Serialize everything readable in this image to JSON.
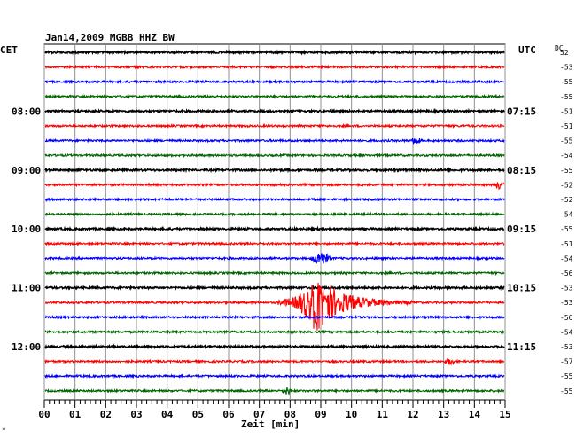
{
  "chart_data": {
    "type": "line",
    "title": "Jan14,2009   MGBB HHZ BW",
    "left_axis_label": "CET",
    "right_axis_label": "UTC",
    "dc_label": "DC",
    "xlabel": "Zeit [min]",
    "xlim": [
      0,
      15
    ],
    "x_ticks": [
      "00",
      "01",
      "02",
      "03",
      "04",
      "05",
      "06",
      "07",
      "08",
      "09",
      "10",
      "11",
      "12",
      "13",
      "14",
      "15"
    ],
    "left_time_labels": [
      {
        "row": 4,
        "text": "08:00"
      },
      {
        "row": 8,
        "text": "09:00"
      },
      {
        "row": 12,
        "text": "10:00"
      },
      {
        "row": 16,
        "text": "11:00"
      },
      {
        "row": 20,
        "text": "12:00"
      }
    ],
    "right_time_labels": [
      {
        "row": 4,
        "text": "07:15"
      },
      {
        "row": 8,
        "text": "08:15"
      },
      {
        "row": 12,
        "text": "09:15"
      },
      {
        "row": 16,
        "text": "10:15"
      },
      {
        "row": 20,
        "text": "11:15"
      }
    ],
    "color_cycle": [
      "#000000",
      "#ff0000",
      "#0000ff",
      "#006400"
    ],
    "dc_offsets": [
      52,
      -53,
      -55,
      -55,
      -51,
      -51,
      -55,
      -54,
      -55,
      -52,
      -52,
      -54,
      -55,
      -51,
      -54,
      -56,
      -53,
      -53,
      -56,
      -54,
      -53,
      -57,
      -55,
      -55
    ],
    "events": [
      {
        "row": 14,
        "x_min": 9.0,
        "amplitude": "small"
      },
      {
        "row": 17,
        "x_min": 8.8,
        "amplitude": "large"
      },
      {
        "row": 9,
        "x_min": 14.8,
        "amplitude": "tiny"
      },
      {
        "row": 6,
        "x_min": 12.1,
        "amplitude": "tiny"
      },
      {
        "row": 21,
        "x_min": 13.2,
        "amplitude": "tiny"
      },
      {
        "row": 23,
        "x_min": 7.9,
        "amplitude": "tiny"
      }
    ]
  },
  "footer_mark": "*"
}
